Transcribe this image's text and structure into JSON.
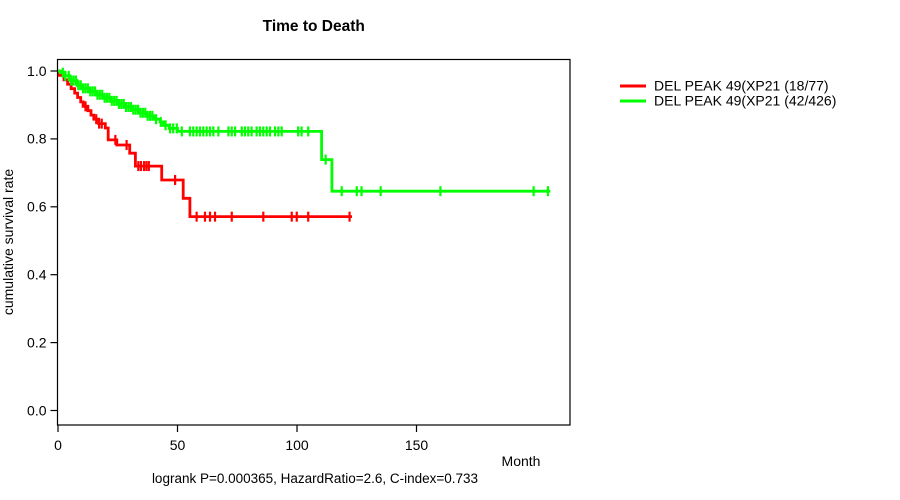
{
  "title": "Time to Death",
  "axes": {
    "x_label": "Month",
    "y_label": "cumulative survival rate"
  },
  "caption": "logrank P=0.000365, HazardRatio=2.6, C-index=0.733",
  "legend": [
    {
      "label": "DEL PEAK 49(XP21 (18/77)",
      "color": "#ff0000"
    },
    {
      "label": "DEL PEAK 49(XP21 (42/426)",
      "color": "#00ff00"
    }
  ],
  "chart_data": {
    "type": "line",
    "subtype": "kaplan-meier-step",
    "title": "Time to Death",
    "xlabel": "Month",
    "ylabel": "cumulative survival rate",
    "xlim": [
      0,
      214
    ],
    "ylim": [
      0.0,
      1.0
    ],
    "x_ticks": [
      0,
      50,
      100,
      150
    ],
    "y_ticks": [
      1.0,
      0.8,
      0.6,
      0.4,
      0.2,
      0.0
    ],
    "grid": false,
    "legend_position": "outside-right",
    "annotation": "logrank P=0.000365, HazardRatio=2.6, C-index=0.733",
    "series": [
      {
        "name": "DEL PEAK 49(XP21 (18/77)",
        "color": "#ff0000",
        "steps": [
          [
            0,
            1.0
          ],
          [
            0.5,
            0.987
          ],
          [
            2.5,
            0.974
          ],
          [
            4,
            0.961
          ],
          [
            5.5,
            0.948
          ],
          [
            7,
            0.935
          ],
          [
            8.2,
            0.922
          ],
          [
            9.5,
            0.909
          ],
          [
            10.5,
            0.896
          ],
          [
            12.5,
            0.883
          ],
          [
            13.8,
            0.87
          ],
          [
            15,
            0.858
          ],
          [
            17,
            0.845
          ],
          [
            19.8,
            0.832
          ],
          [
            21,
            0.797
          ],
          [
            24.6,
            0.782
          ],
          [
            30,
            0.758
          ],
          [
            32.4,
            0.72
          ],
          [
            43.4,
            0.679
          ],
          [
            52.4,
            0.625
          ],
          [
            55.2,
            0.571
          ]
        ],
        "end_month": 123,
        "censor_months": [
          11.5,
          16,
          17.2,
          18.3,
          24,
          28.7,
          33.6,
          34.7,
          36,
          37,
          38,
          49,
          58,
          61.5,
          63.6,
          65.7,
          72.7,
          85.9,
          97.8,
          99.9,
          104.7,
          122
        ]
      },
      {
        "name": "DEL PEAK 49(XP21 (42/426)",
        "color": "#00ff00",
        "steps": [
          [
            0,
            1.0
          ],
          [
            1,
            0.995
          ],
          [
            3,
            0.986
          ],
          [
            5,
            0.972
          ],
          [
            8,
            0.958
          ],
          [
            10,
            0.949
          ],
          [
            13,
            0.94
          ],
          [
            16,
            0.93
          ],
          [
            19,
            0.921
          ],
          [
            22,
            0.912
          ],
          [
            25,
            0.903
          ],
          [
            28,
            0.894
          ],
          [
            31,
            0.886
          ],
          [
            34,
            0.877
          ],
          [
            37,
            0.868
          ],
          [
            40,
            0.858
          ],
          [
            42.7,
            0.85
          ],
          [
            44,
            0.84
          ],
          [
            46.5,
            0.831
          ],
          [
            50,
            0.822
          ],
          [
            110.3,
            0.739
          ],
          [
            114.6,
            0.646
          ]
        ],
        "end_month": 206,
        "censor_months": [
          2,
          3,
          4.5,
          5.5,
          6.5,
          7.5,
          8.5,
          9.5,
          10.5,
          11.5,
          12.5,
          13.5,
          14.5,
          15.5,
          16.5,
          17.5,
          18.5,
          19.5,
          20.5,
          21.5,
          22.5,
          23.5,
          24.5,
          25.5,
          26.5,
          27.5,
          28.5,
          29.5,
          30.5,
          31.5,
          32.5,
          33.5,
          34.5,
          35.5,
          36.5,
          37.5,
          38.5,
          39.5,
          41,
          43,
          45,
          46.9,
          48.2,
          49.7,
          51.8,
          55.2,
          56.6,
          58,
          59.4,
          60.8,
          62.2,
          63.6,
          65,
          67.1,
          71.3,
          72.7,
          74.1,
          76.9,
          78.2,
          79.6,
          81,
          83.1,
          84.5,
          85.9,
          87.3,
          88.7,
          90.8,
          92.2,
          93.6,
          100.5,
          101.9,
          104.7,
          112,
          118.7,
          125,
          127,
          135,
          160,
          199,
          205
        ]
      }
    ]
  }
}
